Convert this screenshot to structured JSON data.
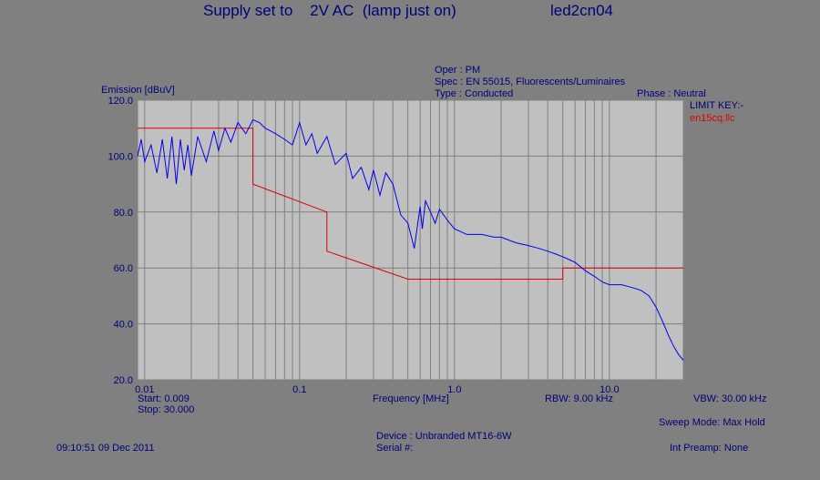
{
  "header": {
    "title_left": "Supply set to    2V AC  (lamp just on)",
    "title_right": "led2cn04",
    "oper": "Oper : PM",
    "spec": "Spec : EN 55015, Fluorescents/Luminaires",
    "type": "Type : Conducted",
    "phase": "Phase : Neutral",
    "limit_key": "LIMIT KEY:-",
    "limit_file": "en15cq.llc"
  },
  "footer": {
    "start": "Start: 0.009",
    "stop": "Stop: 30.000",
    "freq_label": "Frequency [MHz]",
    "rbw": "RBW: 9.00 kHz",
    "vbw": "VBW: 30.00 kHz",
    "sweep": "Sweep Mode: Max Hold",
    "device": "Device : Unbranded MT16-6W",
    "serial": "Serial #:",
    "preamp": "Int Preamp: None",
    "timestamp": "09:10:51 09 Dec 2011"
  },
  "colors": {
    "background": "#808080",
    "plot_bg": "#c0c0c0",
    "grid": "#7f7f7f",
    "text": "#00007b",
    "trace": "#0000ee",
    "limit": "#e00000"
  },
  "chart_data": {
    "type": "line",
    "x_scale": "log",
    "xlim": [
      0.009,
      30.0
    ],
    "ylim": [
      20,
      120
    ],
    "xlabel": "Frequency [MHz]",
    "ylabel": "Emission [dBuV]",
    "x_ticks": [
      "0.01",
      "0.1",
      "1.0",
      "10.0"
    ],
    "y_ticks": [
      "20.0",
      "40.0",
      "60.0",
      "80.0",
      "100.0",
      "120.0"
    ],
    "grid": true,
    "series": [
      {
        "name": "en15cq.llc",
        "color": "#e00000",
        "x": [
          0.009,
          0.05,
          0.05,
          0.15,
          0.15,
          0.5,
          5.0,
          5.0,
          30.0
        ],
        "y": [
          110,
          110,
          90,
          80,
          66,
          56,
          56,
          60,
          60
        ]
      },
      {
        "color": "#0000ee",
        "x": [
          0.009,
          0.0095,
          0.01,
          0.011,
          0.012,
          0.013,
          0.014,
          0.015,
          0.016,
          0.017,
          0.018,
          0.019,
          0.02,
          0.022,
          0.025,
          0.028,
          0.03,
          0.033,
          0.036,
          0.04,
          0.045,
          0.05,
          0.055,
          0.06,
          0.065,
          0.07,
          0.08,
          0.09,
          0.1,
          0.11,
          0.12,
          0.13,
          0.15,
          0.17,
          0.2,
          0.22,
          0.25,
          0.28,
          0.3,
          0.33,
          0.36,
          0.4,
          0.45,
          0.5,
          0.55,
          0.6,
          0.62,
          0.65,
          0.7,
          0.75,
          0.8,
          0.9,
          1.0,
          1.2,
          1.5,
          1.8,
          2.0,
          2.5,
          3.0,
          3.5,
          4.0,
          4.5,
          5.0,
          5.5,
          6.0,
          7.0,
          8.0,
          9.0,
          10.0,
          12.0,
          14.0,
          16.0,
          18.0,
          20.0,
          22.0,
          24.0,
          26.0,
          28.0,
          30.0
        ],
        "y": [
          100,
          106,
          98,
          104,
          94,
          106,
          92,
          107,
          90,
          106,
          95,
          104,
          93,
          107,
          98,
          109,
          102,
          110,
          105,
          112,
          108,
          113,
          112,
          110,
          109,
          108,
          106,
          104,
          112,
          104,
          108,
          101,
          107,
          97,
          101,
          92,
          96,
          88,
          95,
          86,
          94,
          90,
          79,
          76,
          67,
          82,
          74,
          84,
          80,
          76,
          81,
          77,
          74,
          72,
          72,
          71,
          71,
          69,
          68,
          67,
          66,
          65,
          64,
          63,
          62,
          59,
          57,
          55,
          54,
          54,
          53,
          52,
          50,
          46,
          41,
          36,
          32,
          29,
          27
        ]
      }
    ]
  }
}
